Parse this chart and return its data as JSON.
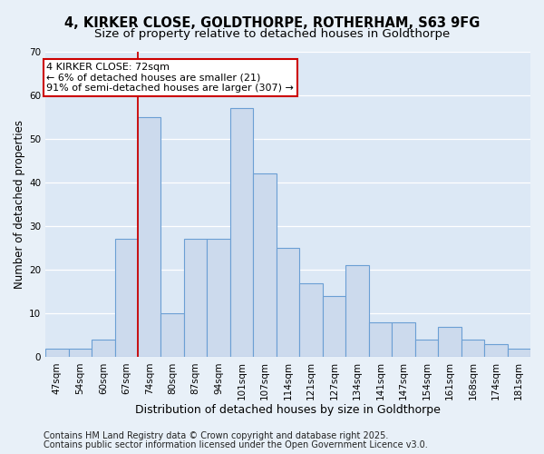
{
  "title1": "4, KIRKER CLOSE, GOLDTHORPE, ROTHERHAM, S63 9FG",
  "title2": "Size of property relative to detached houses in Goldthorpe",
  "xlabel": "Distribution of detached houses by size in Goldthorpe",
  "ylabel": "Number of detached properties",
  "categories": [
    "47sqm",
    "54sqm",
    "60sqm",
    "67sqm",
    "74sqm",
    "80sqm",
    "87sqm",
    "94sqm",
    "101sqm",
    "107sqm",
    "114sqm",
    "121sqm",
    "127sqm",
    "134sqm",
    "141sqm",
    "147sqm",
    "154sqm",
    "161sqm",
    "168sqm",
    "174sqm",
    "181sqm"
  ],
  "values": [
    2,
    2,
    4,
    27,
    55,
    10,
    27,
    27,
    57,
    42,
    25,
    17,
    14,
    21,
    8,
    8,
    4,
    7,
    4,
    3,
    2
  ],
  "bar_color": "#ccdaed",
  "bar_edgecolor": "#6b9fd4",
  "bar_linewidth": 0.8,
  "background_color": "#e8f0f8",
  "plot_bg_color": "#dce8f5",
  "grid_color": "#ffffff",
  "red_line_index": 3,
  "annotation_line1": "4 KIRKER CLOSE: 72sqm",
  "annotation_line2": "← 6% of detached houses are smaller (21)",
  "annotation_line3": "91% of semi-detached houses are larger (307) →",
  "annotation_box_color": "#ffffff",
  "annotation_border_color": "#cc0000",
  "ylim": [
    0,
    70
  ],
  "yticks": [
    0,
    10,
    20,
    30,
    40,
    50,
    60,
    70
  ],
  "figsize": [
    6.0,
    5.0
  ],
  "dpi": 100,
  "title1_fontsize": 10.5,
  "title2_fontsize": 9.5,
  "xlabel_fontsize": 9,
  "ylabel_fontsize": 8.5,
  "tick_fontsize": 7.5,
  "ann_fontsize": 8,
  "footnote1": "Contains HM Land Registry data © Crown copyright and database right 2025.",
  "footnote2": "Contains public sector information licensed under the Open Government Licence v3.0."
}
